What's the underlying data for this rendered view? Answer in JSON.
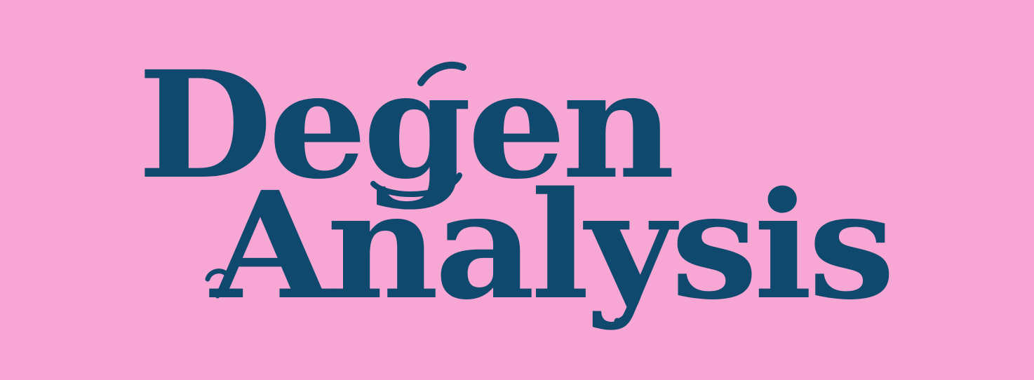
{
  "logo": {
    "line1": "Degen",
    "line2": "Analysis"
  },
  "colors": {
    "background": "#F8A6D3",
    "text": "#0F4A6E"
  }
}
